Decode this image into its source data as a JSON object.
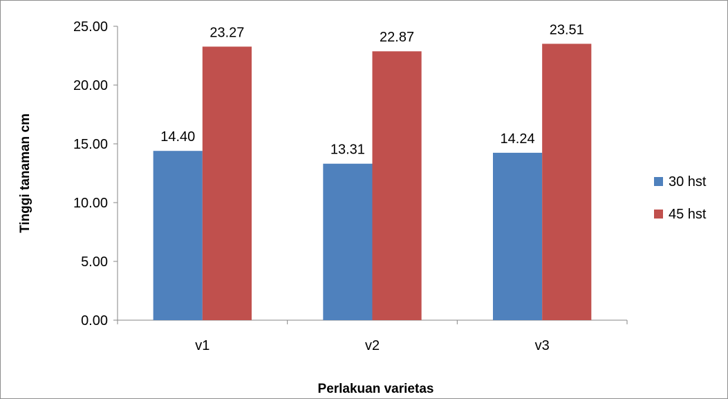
{
  "chart_data": {
    "type": "bar",
    "title": "",
    "xlabel": "Perlakuan varietas",
    "ylabel": "Tinggi tanaman cm",
    "categories": [
      "v1",
      "v2",
      "v3"
    ],
    "series": [
      {
        "name": "30 hst",
        "color": "#4f81bd",
        "values": [
          14.4,
          13.31,
          14.24
        ],
        "labels": [
          "14.40",
          "13.31",
          "14.24"
        ]
      },
      {
        "name": "45 hst",
        "color": "#c0504d",
        "values": [
          23.27,
          22.87,
          23.51
        ],
        "labels": [
          "23.27",
          "22.87",
          "23.51"
        ]
      }
    ],
    "ylim": [
      0,
      25
    ],
    "yticks": [
      0,
      5,
      10,
      15,
      20,
      25
    ],
    "ytick_labels": [
      "0.00",
      "5.00",
      "10.00",
      "15.00",
      "20.00",
      "25.00"
    ],
    "grid": false,
    "legend_position": "right"
  }
}
